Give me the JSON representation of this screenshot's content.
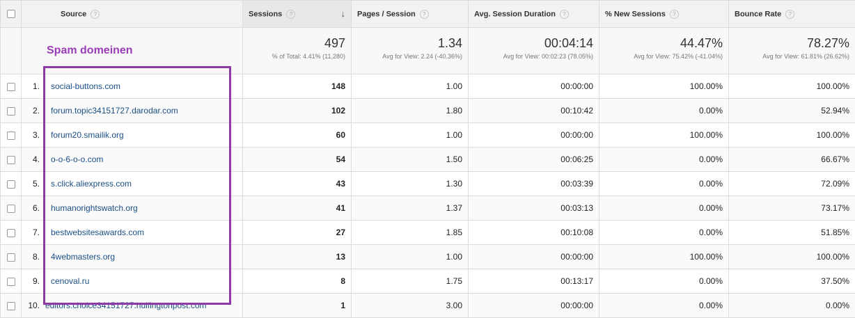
{
  "headers": {
    "source": "Source",
    "sessions": "Sessions",
    "pages_session": "Pages / Session",
    "avg_duration": "Avg. Session Duration",
    "new_sessions": "% New Sessions",
    "bounce_rate": "Bounce Rate",
    "help": "?",
    "sort_indicator": "↓"
  },
  "annotation": {
    "label": "Spam domeinen",
    "color": "#8e3aa6"
  },
  "totals": {
    "sessions": {
      "value": "497",
      "sub": "% of Total: 4.41% (11,280)"
    },
    "pages_session": {
      "value": "1.34",
      "sub": "Avg for View: 2.24 (-40.36%)"
    },
    "avg_duration": {
      "value": "00:04:14",
      "sub": "Avg for View: 00:02:23 (78.05%)"
    },
    "new_sessions": {
      "value": "44.47%",
      "sub": "Avg for View: 75.42% (-41.04%)"
    },
    "bounce_rate": {
      "value": "78.27%",
      "sub": "Avg for View: 61.81% (26.62%)"
    }
  },
  "rows": [
    {
      "index": "1.",
      "source": "social-buttons.com",
      "sessions": "148",
      "pages": "1.00",
      "duration": "00:00:00",
      "new": "100.00%",
      "bounce": "100.00%"
    },
    {
      "index": "2.",
      "source": "forum.topic34151727.darodar.com",
      "sessions": "102",
      "pages": "1.80",
      "duration": "00:10:42",
      "new": "0.00%",
      "bounce": "52.94%"
    },
    {
      "index": "3.",
      "source": "forum20.smailik.org",
      "sessions": "60",
      "pages": "1.00",
      "duration": "00:00:00",
      "new": "100.00%",
      "bounce": "100.00%"
    },
    {
      "index": "4.",
      "source": "o-o-6-o-o.com",
      "sessions": "54",
      "pages": "1.50",
      "duration": "00:06:25",
      "new": "0.00%",
      "bounce": "66.67%"
    },
    {
      "index": "5.",
      "source": "s.click.aliexpress.com",
      "sessions": "43",
      "pages": "1.30",
      "duration": "00:03:39",
      "new": "0.00%",
      "bounce": "72.09%"
    },
    {
      "index": "6.",
      "source": "humanorightswatch.org",
      "sessions": "41",
      "pages": "1.37",
      "duration": "00:03:13",
      "new": "0.00%",
      "bounce": "73.17%"
    },
    {
      "index": "7.",
      "source": "bestwebsitesawards.com",
      "sessions": "27",
      "pages": "1.85",
      "duration": "00:10:08",
      "new": "0.00%",
      "bounce": "51.85%"
    },
    {
      "index": "8.",
      "source": "4webmasters.org",
      "sessions": "13",
      "pages": "1.00",
      "duration": "00:00:00",
      "new": "100.00%",
      "bounce": "100.00%"
    },
    {
      "index": "9.",
      "source": "cenoval.ru",
      "sessions": "8",
      "pages": "1.75",
      "duration": "00:13:17",
      "new": "0.00%",
      "bounce": "37.50%"
    },
    {
      "index": "10.",
      "source": "editors.choice34151727.hulfingtonpost.com",
      "sessions": "1",
      "pages": "3.00",
      "duration": "00:00:00",
      "new": "0.00%",
      "bounce": "0.00%"
    }
  ]
}
